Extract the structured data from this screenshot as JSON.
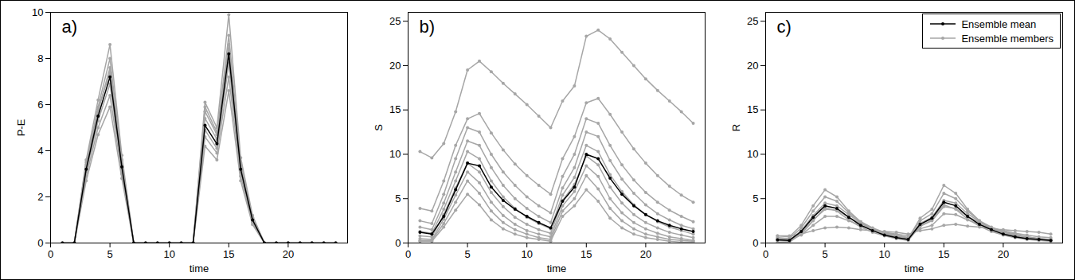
{
  "chart_data": [
    {
      "type": "line",
      "title": "a)",
      "x_label": "time",
      "y_label": "P-E",
      "xlim": [
        0,
        25
      ],
      "xticks": [
        0,
        5,
        10,
        15,
        20
      ],
      "ylim": [
        0,
        10
      ],
      "yticks": [
        0,
        2,
        4,
        6,
        8,
        10
      ],
      "grid": false,
      "x": [
        1,
        2,
        3,
        4,
        5,
        6,
        7,
        8,
        9,
        10,
        11,
        12,
        13,
        14,
        15,
        16,
        17,
        18,
        19,
        20,
        21,
        22,
        23,
        24
      ],
      "series": [
        {
          "name": "Ensemble mean",
          "color": "#000000",
          "marker": "dot",
          "line_style": "solid",
          "values": [
            0,
            0,
            3.2,
            5.5,
            7.2,
            3.3,
            0,
            0,
            0,
            0,
            0,
            0,
            5.1,
            4.3,
            8.2,
            3.2,
            1.0,
            0,
            0,
            0,
            0,
            0,
            0,
            0
          ]
        },
        {
          "name": "Ensemble members",
          "color": "#a6a6a6",
          "marker": "dot",
          "line_style": "solid",
          "values": [
            [
              0,
              0,
              3.6,
              6.2,
              8.6,
              3.8,
              0,
              0,
              0,
              0,
              0,
              0,
              6.1,
              5.0,
              9.9,
              3.7,
              1.2,
              0,
              0,
              0,
              0,
              0,
              0,
              0
            ],
            [
              0,
              0,
              3.4,
              5.9,
              8.0,
              3.6,
              0,
              0,
              0,
              0,
              0,
              0,
              5.7,
              4.7,
              9.0,
              3.5,
              1.1,
              0,
              0,
              0,
              0,
              0,
              0,
              0
            ],
            [
              0,
              0,
              3.3,
              5.7,
              7.6,
              3.4,
              0,
              0,
              0,
              0,
              0,
              0,
              5.4,
              4.5,
              8.6,
              3.3,
              1.0,
              0,
              0,
              0,
              0,
              0,
              0,
              0
            ],
            [
              0,
              0,
              3.1,
              5.3,
              6.9,
              3.2,
              0,
              0,
              0,
              0,
              0,
              0,
              4.9,
              4.1,
              7.8,
              3.1,
              0.9,
              0,
              0,
              0,
              0,
              0,
              0,
              0
            ],
            [
              0,
              0,
              2.9,
              5.0,
              6.4,
              3.0,
              0,
              0,
              0,
              0,
              0,
              0,
              4.6,
              3.9,
              7.2,
              2.9,
              0.9,
              0,
              0,
              0,
              0,
              0,
              0,
              0
            ],
            [
              0,
              0,
              2.7,
              4.7,
              5.9,
              2.8,
              0,
              0,
              0,
              0,
              0,
              0,
              4.2,
              3.6,
              6.6,
              2.7,
              0.8,
              0,
              0,
              0,
              0,
              0,
              0,
              0
            ],
            [
              0,
              0,
              3.5,
              5.8,
              7.4,
              3.5,
              0,
              0,
              0,
              0,
              0,
              0,
              5.9,
              4.8,
              8.4,
              3.4,
              1.1,
              0,
              0,
              0,
              0,
              0,
              0,
              0
            ]
          ]
        }
      ]
    },
    {
      "type": "line",
      "title": "b)",
      "x_label": "time",
      "y_label": "S",
      "xlim": [
        0,
        25
      ],
      "xticks": [
        0,
        5,
        10,
        15,
        20
      ],
      "ylim": [
        0,
        26
      ],
      "yticks": [
        0,
        5,
        10,
        15,
        20,
        25
      ],
      "grid": false,
      "x": [
        1,
        2,
        3,
        4,
        5,
        6,
        7,
        8,
        9,
        10,
        11,
        12,
        13,
        14,
        15,
        16,
        17,
        18,
        19,
        20,
        21,
        22,
        23,
        24
      ],
      "series": [
        {
          "name": "Ensemble mean",
          "color": "#000000",
          "marker": "dot",
          "line_style": "solid",
          "values": [
            1.2,
            1.0,
            3.0,
            6.0,
            9.0,
            8.7,
            6.3,
            4.8,
            3.8,
            3.0,
            2.3,
            1.7,
            4.7,
            6.3,
            10.0,
            9.5,
            7.3,
            5.5,
            4.2,
            3.2,
            2.5,
            2.0,
            1.6,
            1.3
          ]
        },
        {
          "name": "Ensemble members",
          "color": "#a6a6a6",
          "marker": "dot",
          "line_style": "solid",
          "values": [
            [
              10.3,
              9.6,
              11.2,
              14.8,
              19.5,
              20.5,
              19.3,
              18.0,
              16.8,
              15.6,
              14.3,
              13.0,
              16.0,
              17.7,
              23.3,
              24.0,
              23.0,
              21.5,
              20.0,
              18.5,
              17.2,
              16.0,
              14.8,
              13.5
            ],
            [
              3.9,
              3.6,
              7.0,
              11.0,
              14.0,
              14.6,
              12.4,
              10.5,
              8.9,
              7.6,
              6.5,
              5.5,
              9.5,
              12.0,
              15.8,
              16.3,
              14.5,
              12.5,
              10.6,
              9.0,
              7.6,
              6.4,
              5.4,
              4.6
            ],
            [
              2.5,
              2.2,
              5.5,
              9.5,
              13.0,
              12.5,
              10.0,
              8.0,
              6.5,
              5.2,
              4.2,
              3.4,
              7.5,
              10.0,
              14.0,
              13.5,
              11.0,
              8.8,
              7.1,
              5.7,
              4.6,
              3.7,
              3.0,
              2.4
            ],
            [
              1.8,
              1.5,
              4.5,
              8.0,
              11.5,
              11.0,
              8.5,
              6.5,
              5.0,
              3.9,
              3.0,
              2.3,
              6.2,
              8.5,
              12.5,
              12.0,
              9.3,
              7.2,
              5.6,
              4.3,
              3.3,
              2.6,
              2.0,
              1.6
            ],
            [
              1.3,
              1.1,
              3.8,
              7.0,
              10.3,
              9.5,
              7.0,
              5.2,
              3.9,
              2.9,
              2.2,
              1.6,
              5.4,
              7.4,
              11.0,
              10.3,
              7.7,
              5.8,
              4.3,
              3.2,
              2.4,
              1.8,
              1.4,
              1.0
            ],
            [
              0.8,
              0.7,
              3.2,
              6.2,
              9.0,
              8.0,
              5.7,
              4.1,
              2.9,
              2.1,
              1.5,
              1.1,
              4.8,
              6.6,
              9.8,
              8.8,
              6.3,
              4.5,
              3.2,
              2.3,
              1.7,
              1.2,
              0.9,
              0.6
            ],
            [
              0.5,
              0.4,
              2.7,
              5.4,
              8.0,
              6.8,
              4.6,
              3.1,
              2.1,
              1.4,
              1.0,
              0.7,
              4.2,
              5.8,
              8.7,
              7.5,
              5.0,
              3.4,
              2.3,
              1.6,
              1.1,
              0.7,
              0.5,
              0.3
            ],
            [
              0.3,
              0.3,
              2.2,
              4.6,
              7.0,
              5.6,
              3.6,
              2.3,
              1.5,
              1.0,
              0.6,
              0.4,
              3.6,
              5.0,
              7.6,
              6.1,
              3.9,
              2.5,
              1.6,
              1.0,
              0.7,
              0.4,
              0.3,
              0.2
            ],
            [
              0.2,
              0.2,
              1.8,
              3.7,
              5.5,
              4.3,
              2.6,
              1.6,
              1.0,
              0.6,
              0.4,
              0.2,
              3.0,
              4.2,
              6.0,
              4.7,
              2.8,
              1.7,
              1.0,
              0.6,
              0.4,
              0.2,
              0.1,
              0.1
            ]
          ]
        }
      ]
    },
    {
      "type": "line",
      "title": "c)",
      "x_label": "time",
      "y_label": "R",
      "xlim": [
        0,
        25
      ],
      "xticks": [
        0,
        5,
        10,
        15,
        20
      ],
      "ylim": [
        0,
        26
      ],
      "yticks": [
        0,
        5,
        10,
        15,
        20,
        25
      ],
      "grid": false,
      "legend": "top-right",
      "x": [
        1,
        2,
        3,
        4,
        5,
        6,
        7,
        8,
        9,
        10,
        11,
        12,
        13,
        14,
        15,
        16,
        17,
        18,
        19,
        20,
        21,
        22,
        23,
        24
      ],
      "series": [
        {
          "name": "Ensemble mean",
          "color": "#000000",
          "marker": "dot",
          "line_style": "solid",
          "values": [
            0.35,
            0.3,
            1.3,
            2.9,
            4.2,
            3.9,
            2.9,
            2.0,
            1.4,
            0.9,
            0.6,
            0.4,
            2.1,
            2.8,
            4.6,
            4.2,
            3.0,
            2.1,
            1.5,
            1.0,
            0.7,
            0.5,
            0.4,
            0.3
          ]
        },
        {
          "name": "Ensemble members",
          "color": "#a6a6a6",
          "marker": "dot",
          "line_style": "solid",
          "values": [
            [
              0.8,
              0.8,
              1.0,
              1.4,
              1.7,
              1.8,
              1.7,
              1.5,
              1.4,
              1.3,
              1.2,
              1.0,
              1.4,
              1.6,
              2.0,
              2.1,
              1.9,
              1.8,
              1.6,
              1.5,
              1.4,
              1.3,
              1.2,
              1.0
            ],
            [
              0.8,
              0.7,
              2.0,
              4.2,
              6.0,
              5.2,
              3.6,
              2.4,
              1.6,
              1.0,
              0.7,
              0.5,
              2.8,
              3.8,
              6.5,
              5.6,
              3.8,
              2.5,
              1.7,
              1.1,
              0.8,
              0.5,
              0.4,
              0.3
            ],
            [
              0.6,
              0.5,
              1.7,
              3.6,
              5.2,
              4.7,
              3.4,
              2.4,
              1.7,
              1.2,
              0.8,
              0.6,
              2.5,
              3.3,
              5.6,
              5.0,
              3.6,
              2.5,
              1.8,
              1.3,
              0.9,
              0.7,
              0.5,
              0.4
            ],
            [
              0.4,
              0.3,
              1.4,
              3.1,
              4.5,
              4.2,
              3.2,
              2.3,
              1.6,
              1.1,
              0.8,
              0.5,
              2.2,
              2.9,
              4.8,
              4.5,
              3.3,
              2.4,
              1.7,
              1.2,
              0.9,
              0.6,
              0.5,
              0.3
            ],
            [
              0.3,
              0.2,
              1.1,
              2.6,
              3.8,
              3.7,
              2.9,
              2.2,
              1.6,
              1.2,
              0.9,
              0.6,
              1.9,
              2.5,
              4.1,
              3.9,
              3.0,
              2.3,
              1.7,
              1.3,
              1.0,
              0.7,
              0.5,
              0.4
            ],
            [
              0.5,
              0.4,
              0.9,
              2.0,
              3.0,
              3.0,
              2.5,
              2.0,
              1.6,
              1.2,
              1.0,
              0.8,
              1.6,
              2.0,
              3.3,
              3.2,
              2.6,
              2.1,
              1.7,
              1.4,
              1.1,
              0.9,
              0.7,
              0.6
            ],
            [
              0.1,
              0.1,
              1.0,
              2.5,
              4.0,
              3.6,
              2.6,
              1.8,
              1.2,
              0.8,
              0.5,
              0.3,
              1.9,
              2.6,
              4.3,
              3.8,
              2.7,
              1.9,
              1.3,
              0.9,
              0.6,
              0.4,
              0.3,
              0.2
            ]
          ]
        }
      ]
    }
  ]
}
